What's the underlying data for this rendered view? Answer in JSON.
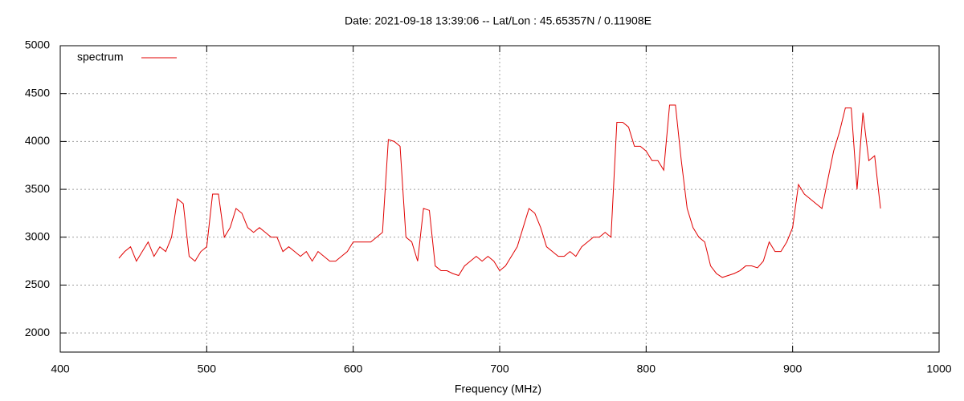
{
  "chart_data": {
    "type": "line",
    "title": "Date: 2021-09-18 13:39:06  --  Lat/Lon : 45.65357N / 0.11908E",
    "x_label": "Frequency (MHz)",
    "x": [
      440,
      444,
      448,
      452,
      456,
      460,
      464,
      468,
      472,
      476,
      480,
      484,
      488,
      492,
      496,
      500,
      504,
      508,
      512,
      516,
      520,
      524,
      528,
      532,
      536,
      540,
      544,
      548,
      552,
      556,
      560,
      564,
      568,
      572,
      576,
      580,
      584,
      588,
      592,
      596,
      600,
      604,
      608,
      612,
      616,
      620,
      624,
      628,
      632,
      636,
      640,
      644,
      648,
      652,
      656,
      660,
      664,
      668,
      672,
      676,
      680,
      684,
      688,
      692,
      696,
      700,
      704,
      708,
      712,
      716,
      720,
      724,
      728,
      732,
      736,
      740,
      744,
      748,
      752,
      756,
      760,
      764,
      768,
      772,
      776,
      780,
      784,
      788,
      792,
      796,
      800,
      804,
      808,
      812,
      816,
      820,
      824,
      828,
      832,
      836,
      840,
      844,
      848,
      852,
      856,
      860,
      864,
      868,
      872,
      876,
      880,
      884,
      888,
      892,
      896,
      900,
      904,
      908,
      912,
      916,
      920,
      924,
      928,
      932,
      936,
      940,
      944,
      948,
      952,
      956,
      960
    ],
    "series": [
      {
        "name": "spectrum",
        "color": "#e00000",
        "values": [
          2780,
          2850,
          2900,
          2750,
          2850,
          2950,
          2800,
          2900,
          2850,
          3000,
          3400,
          3350,
          2800,
          2750,
          2850,
          2900,
          3450,
          3450,
          3000,
          3100,
          3300,
          3250,
          3100,
          3050,
          3100,
          3050,
          3000,
          3000,
          2850,
          2900,
          2850,
          2800,
          2850,
          2750,
          2850,
          2800,
          2750,
          2750,
          2800,
          2850,
          2950,
          2950,
          2950,
          2950,
          3000,
          3050,
          4020,
          4000,
          3950,
          3000,
          2950,
          2750,
          3300,
          3280,
          2700,
          2650,
          2650,
          2620,
          2600,
          2700,
          2750,
          2800,
          2750,
          2800,
          2750,
          2650,
          2700,
          2800,
          2900,
          3100,
          3300,
          3250,
          3100,
          2900,
          2850,
          2800,
          2800,
          2850,
          2800,
          2900,
          2950,
          3000,
          3000,
          3050,
          3000,
          4200,
          4200,
          4150,
          3950,
          3950,
          3900,
          3800,
          3800,
          3700,
          4380,
          4380,
          3800,
          3300,
          3100,
          3000,
          2950,
          2700,
          2620,
          2580,
          2600,
          2620,
          2650,
          2700,
          2700,
          2680,
          2750,
          2950,
          2850,
          2850,
          2950,
          3100,
          3550,
          3450,
          3400,
          3350,
          3300,
          3600,
          3900,
          4100,
          4350,
          4350,
          3500,
          4300,
          3800,
          3850,
          3300
        ]
      }
    ],
    "xlim": [
      400,
      1000
    ],
    "xticks": [
      400,
      500,
      600,
      700,
      800,
      900,
      1000
    ],
    "ylim": [
      1800,
      5000
    ],
    "yticks": [
      2000,
      2500,
      3000,
      3500,
      4000,
      4500,
      5000
    ],
    "grid": true,
    "legend": "top-left"
  }
}
